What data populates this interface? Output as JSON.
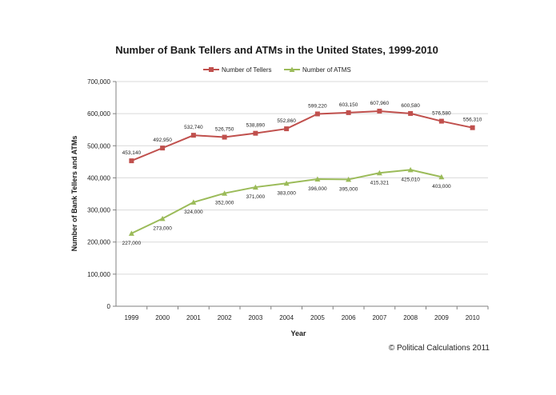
{
  "chart_data": {
    "type": "line",
    "title": "Number of Bank Tellers and ATMs in the United States, 1999-2010",
    "xlabel": "Year",
    "ylabel": "Number of Bank Tellers and ATMs",
    "ylim": [
      0,
      700000
    ],
    "yticks": [
      "0",
      "100,000",
      "200,000",
      "300,000",
      "400,000",
      "500,000",
      "600,000",
      "700,000"
    ],
    "categories": [
      "1999",
      "2000",
      "2001",
      "2002",
      "2003",
      "2004",
      "2005",
      "2006",
      "2007",
      "2008",
      "2009",
      "2010"
    ],
    "grid": true,
    "legend_position": "top",
    "series": [
      {
        "name": "Number of Tellers",
        "color": "#c0504d",
        "marker": "square",
        "values": [
          453140,
          492950,
          532740,
          526750,
          538890,
          552860,
          599220,
          603150,
          607960,
          600580,
          576580,
          556310
        ],
        "labels": [
          "453,140",
          "492,950",
          "532,740",
          "526,750",
          "538,890",
          "552,860",
          "599,220",
          "603,150",
          "607,960",
          "600,580",
          "576,580",
          "556,310"
        ]
      },
      {
        "name": "Number of ATMS",
        "color": "#9bbb59",
        "marker": "triangle",
        "values": [
          227000,
          273000,
          324000,
          352000,
          371000,
          383000,
          396000,
          395000,
          415321,
          425010,
          403000,
          null
        ],
        "labels": [
          "227,000",
          "273,000",
          "324,000",
          "352,000",
          "371,000",
          "383,000",
          "396,000",
          "395,000",
          "415,321",
          "425,010",
          "403,000",
          null
        ]
      }
    ]
  },
  "credit": "© Political Calculations 2011"
}
